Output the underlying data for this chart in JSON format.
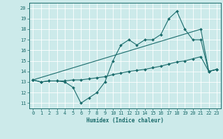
{
  "xlabel": "Humidex (Indice chaleur)",
  "ylabel": "",
  "bg_color": "#cceaea",
  "grid_color": "#ffffff",
  "line_color": "#1a6b6b",
  "xlim": [
    -0.5,
    23.5
  ],
  "ylim": [
    10.5,
    20.5
  ],
  "xticks": [
    0,
    1,
    2,
    3,
    4,
    5,
    6,
    7,
    8,
    9,
    10,
    11,
    12,
    13,
    14,
    15,
    16,
    17,
    18,
    19,
    20,
    21,
    22,
    23
  ],
  "yticks": [
    11,
    12,
    13,
    14,
    15,
    16,
    17,
    18,
    19,
    20
  ],
  "line1_x": [
    0,
    1,
    2,
    3,
    4,
    5,
    6,
    7,
    8,
    9,
    10,
    11,
    12,
    13,
    14,
    15,
    16,
    17,
    18,
    19,
    20,
    21,
    22,
    23
  ],
  "line1_y": [
    13.2,
    13.0,
    13.1,
    13.1,
    13.0,
    12.5,
    11.0,
    11.5,
    12.0,
    13.0,
    15.0,
    16.5,
    17.0,
    16.5,
    17.0,
    17.0,
    17.5,
    19.0,
    19.7,
    18.0,
    17.0,
    17.0,
    14.0,
    14.2
  ],
  "line2_x": [
    0,
    21,
    22,
    23
  ],
  "line2_y": [
    13.2,
    18.0,
    14.0,
    14.2
  ],
  "line3_x": [
    0,
    1,
    2,
    3,
    4,
    5,
    6,
    7,
    8,
    9,
    10,
    11,
    12,
    13,
    14,
    15,
    16,
    17,
    18,
    19,
    20,
    21,
    22,
    23
  ],
  "line3_y": [
    13.2,
    13.0,
    13.1,
    13.1,
    13.1,
    13.2,
    13.2,
    13.3,
    13.4,
    13.5,
    13.7,
    13.85,
    14.0,
    14.1,
    14.2,
    14.35,
    14.5,
    14.7,
    14.9,
    15.0,
    15.2,
    15.4,
    14.0,
    14.2
  ]
}
